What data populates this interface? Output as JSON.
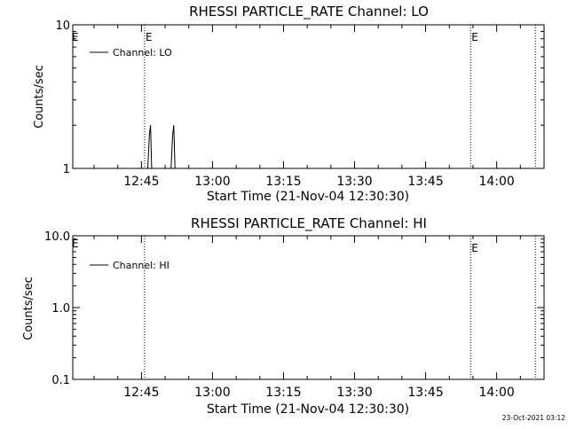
{
  "footer": {
    "timestamp": "23-Oct-2021 03:12"
  },
  "chart_data": [
    {
      "type": "line",
      "title": "RHESSI PARTICLE_RATE Channel: LO",
      "xlabel": "Start Time (21-Nov-04 12:30:30)",
      "ylabel": "Counts/sec",
      "yscale": "log",
      "ylim": [
        1,
        10
      ],
      "ytick_values": [
        1,
        10
      ],
      "ytick_labels": [
        "1",
        "10"
      ],
      "xlim": [
        "12:30:30",
        "14:10:00"
      ],
      "xtick_values": [
        "12:45",
        "13:00",
        "13:15",
        "13:30",
        "13:45",
        "14:00"
      ],
      "xtick_labels": [
        "12:45",
        "13:00",
        "13:15",
        "13:30",
        "13:45",
        "14:00"
      ],
      "grid": false,
      "legend": "top-left",
      "series": [
        {
          "name": "Channel: LO",
          "x": [
            "12:46:20",
            "12:46:40",
            "12:46:55",
            "12:47:10",
            "12:51:15",
            "12:51:35",
            "12:51:50",
            "12:52:05"
          ],
          "y": [
            1,
            1.7,
            2.0,
            1,
            1,
            1.7,
            2.0,
            1
          ]
        }
      ],
      "vlines": [
        {
          "x": "12:45:40",
          "label": "E"
        },
        {
          "x": "13:54:30",
          "label": "E"
        },
        {
          "x": "14:08:10",
          "label": ""
        }
      ],
      "edge_marker": "E"
    },
    {
      "type": "line",
      "title": "RHESSI PARTICLE_RATE Channel: HI",
      "xlabel": "Start Time (21-Nov-04 12:30:30)",
      "ylabel": "Counts/sec",
      "yscale": "log",
      "ylim": [
        0.1,
        10
      ],
      "ytick_values": [
        0.1,
        1,
        10
      ],
      "ytick_labels": [
        "0.1",
        "1.0",
        "10.0"
      ],
      "xlim": [
        "12:30:30",
        "14:10:00"
      ],
      "xtick_values": [
        "12:45",
        "13:00",
        "13:15",
        "13:30",
        "13:45",
        "14:00"
      ],
      "xtick_labels": [
        "12:45",
        "13:00",
        "13:15",
        "13:30",
        "13:45",
        "14:00"
      ],
      "grid": false,
      "legend": "top-left",
      "series": [
        {
          "name": "Channel: HI",
          "x": [],
          "y": []
        }
      ],
      "vlines": [
        {
          "x": "12:45:40",
          "label": ""
        },
        {
          "x": "13:54:30",
          "label": "E"
        },
        {
          "x": "14:08:10",
          "label": ""
        }
      ],
      "edge_marker": "E"
    }
  ]
}
